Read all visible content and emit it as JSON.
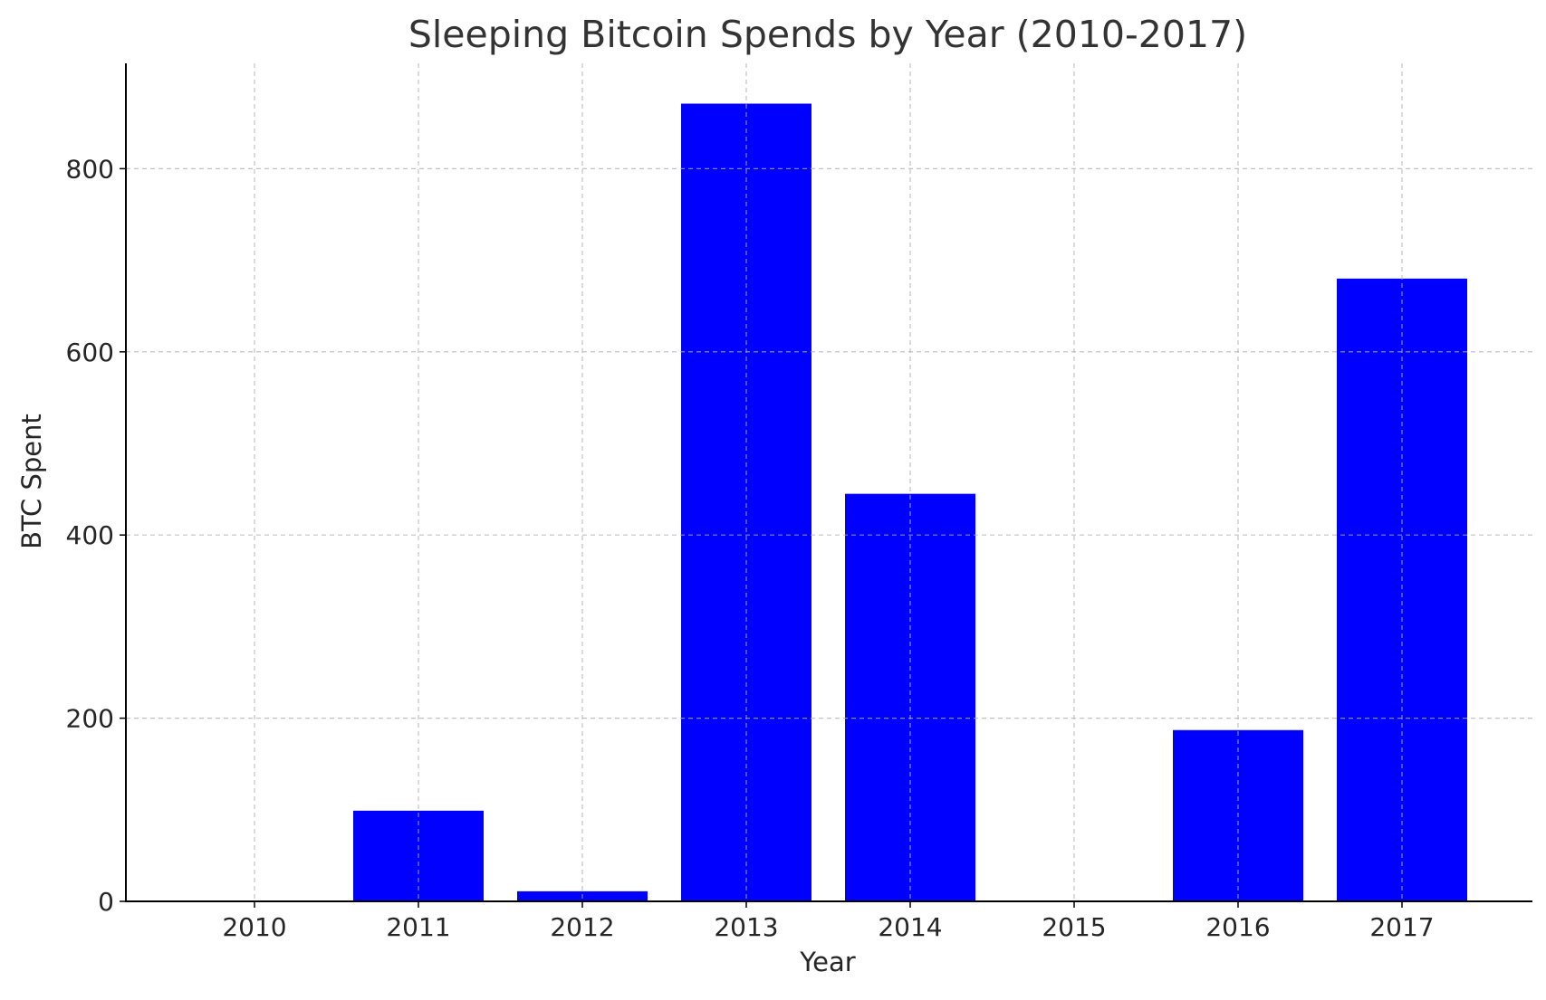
{
  "chart_data": {
    "type": "bar",
    "title": "Sleeping Bitcoin Spends by Year (2010-2017)",
    "xlabel": "Year",
    "ylabel": "BTC Spent",
    "categories": [
      "2010",
      "2011",
      "2012",
      "2013",
      "2014",
      "2015",
      "2016",
      "2017"
    ],
    "values": [
      0,
      99,
      11,
      871,
      445,
      0,
      187,
      680
    ],
    "ylim": [
      0,
      915
    ],
    "yticks": [
      0,
      200,
      400,
      600,
      800
    ],
    "grid": true,
    "bar_color": "#0000ff",
    "grid_color": "#b0b0b0",
    "axis_color": "#000000"
  }
}
